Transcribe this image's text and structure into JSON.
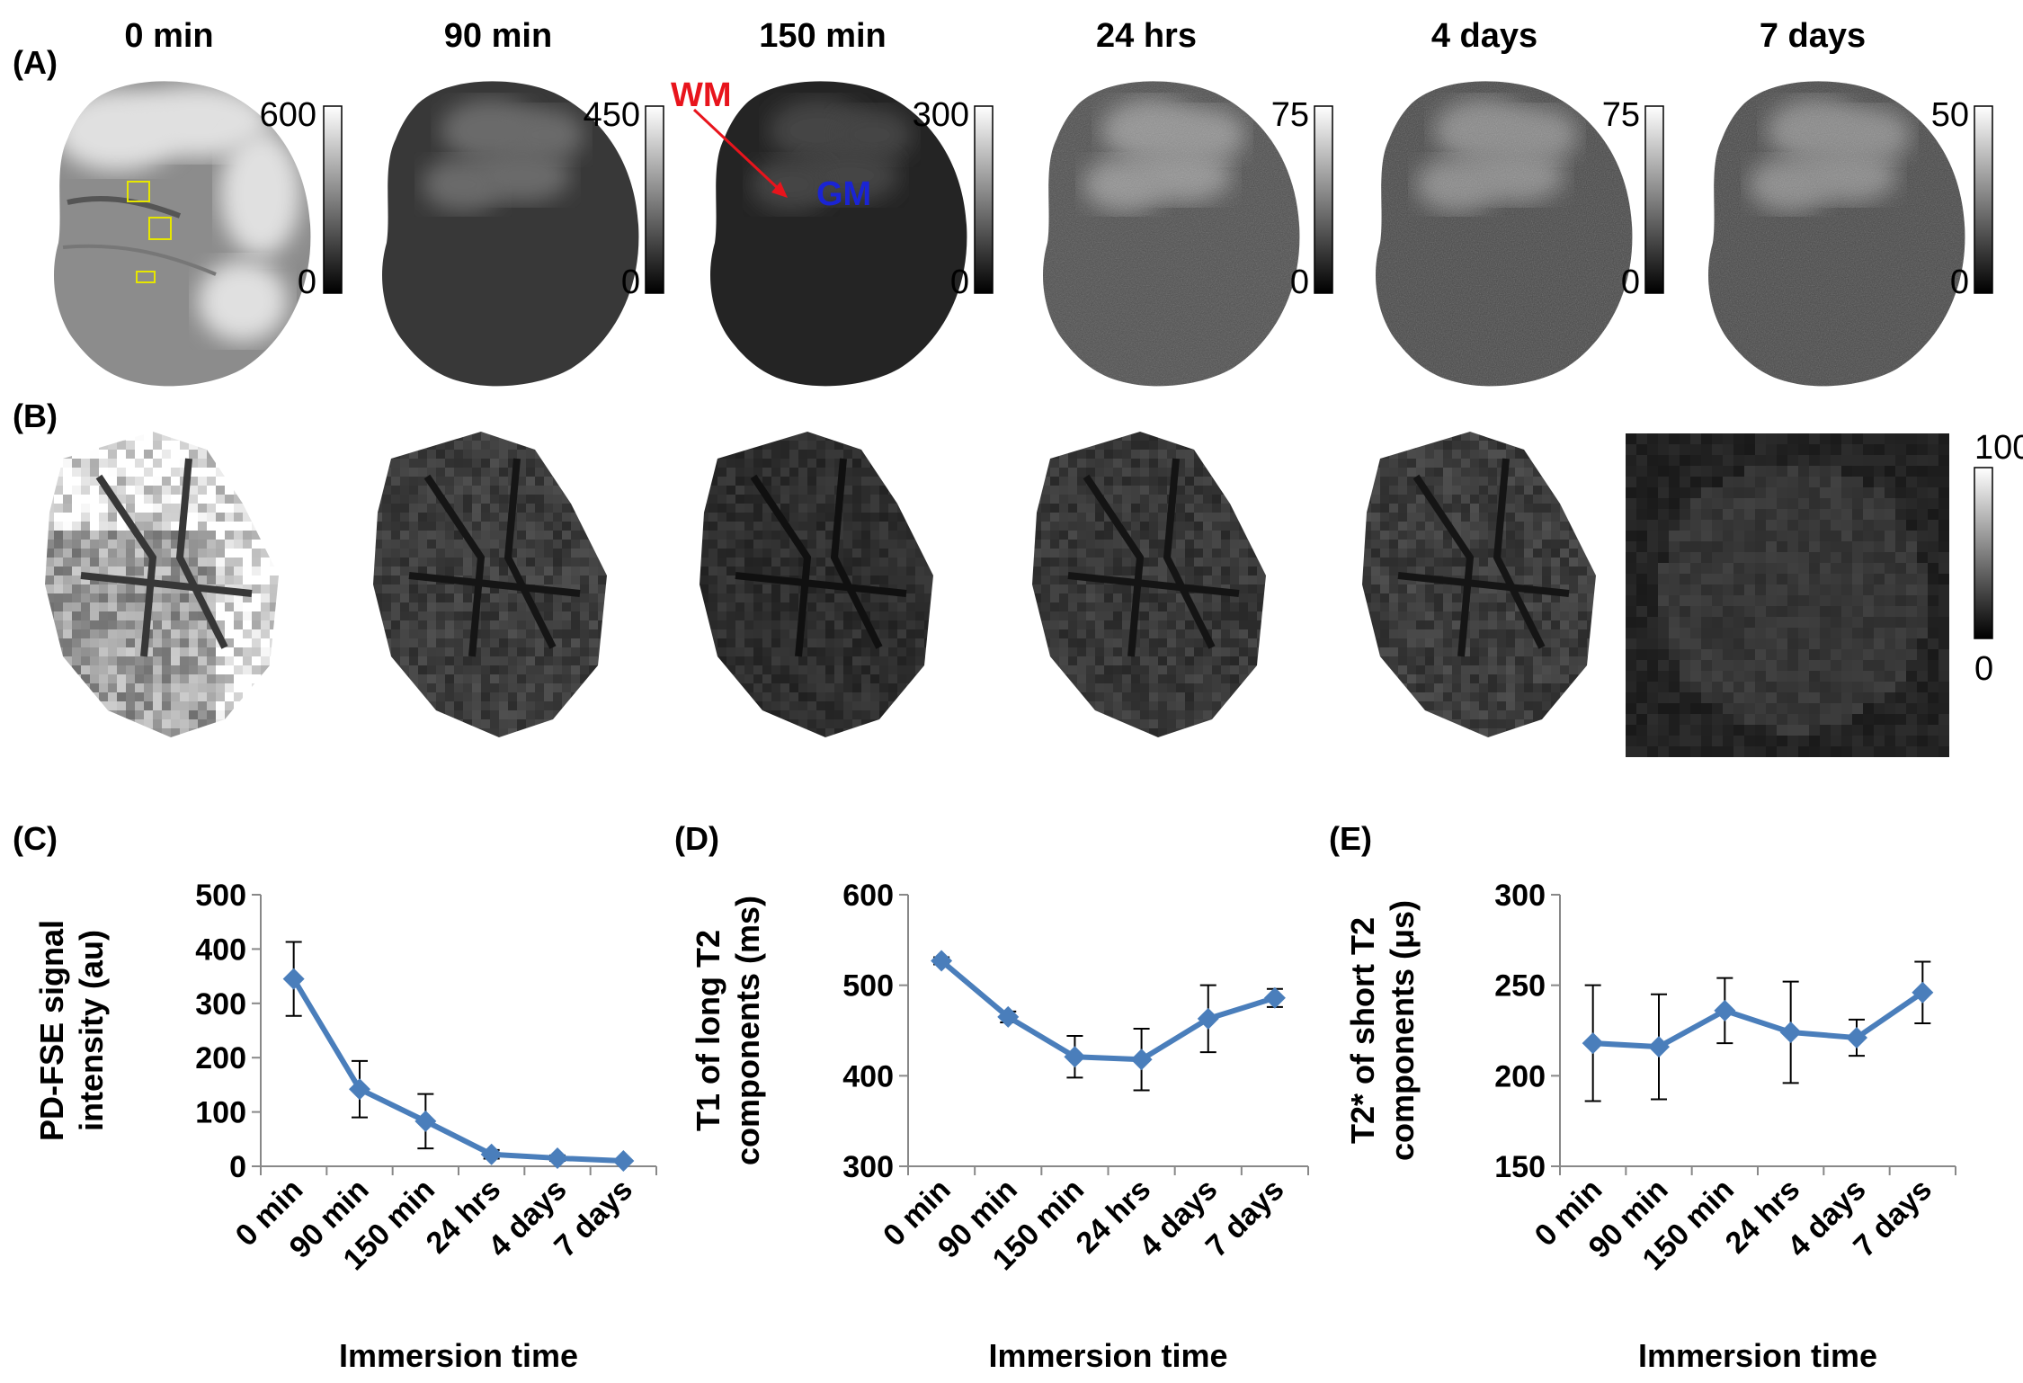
{
  "figure": {
    "panel_labels": [
      "(A)",
      "(B)",
      "(C)",
      "(D)",
      "(E)"
    ],
    "time_headers": [
      "0 min",
      "90 min",
      "150 min",
      "24 hrs",
      "4 days",
      "7 days"
    ],
    "row_a": {
      "colorbar_max": [
        "600",
        "450",
        "300",
        "75",
        "75",
        "50"
      ],
      "colorbar_min": [
        "0",
        "0",
        "0",
        "0",
        "0",
        "0"
      ],
      "annotations": {
        "wm": "WM",
        "gm": "GM"
      },
      "annotation_colors": {
        "wm": "#e8141c",
        "gm": "#1a24d4"
      },
      "image_brightness": [
        0.55,
        0.22,
        0.14,
        0.3,
        0.28,
        0.28
      ]
    },
    "row_b": {
      "colorbar_max": "100",
      "colorbar_min": "0",
      "image_brightness": [
        0.62,
        0.24,
        0.18,
        0.22,
        0.24,
        0.16
      ]
    }
  },
  "chart_data": [
    {
      "type": "line",
      "panel": "(C)",
      "categories": [
        "0 min",
        "90 min",
        "150 min",
        "24 hrs",
        "4 days",
        "7 days"
      ],
      "values": [
        345,
        142,
        83,
        22,
        15,
        10
      ],
      "errors": [
        68,
        52,
        50,
        8,
        5,
        3
      ],
      "ylabel": [
        "PD-FSE signal",
        "intensity (au)"
      ],
      "xlabel": "Immersion time",
      "ylim": [
        0,
        500
      ],
      "yticks": [
        0,
        100,
        200,
        300,
        400,
        500
      ],
      "color": "#4a7ebb"
    },
    {
      "type": "line",
      "panel": "(D)",
      "categories": [
        "0 min",
        "90 min",
        "150 min",
        "24 hrs",
        "4 days",
        "7 days"
      ],
      "values": [
        527,
        465,
        421,
        418,
        463,
        486
      ],
      "errors": [
        4,
        6,
        23,
        34,
        37,
        10
      ],
      "ylabel": [
        "T1 of long T2",
        "components (ms)"
      ],
      "xlabel": "Immersion time",
      "ylim": [
        300,
        600
      ],
      "yticks": [
        300,
        400,
        500,
        600
      ],
      "color": "#4a7ebb"
    },
    {
      "type": "line",
      "panel": "(E)",
      "categories": [
        "0 min",
        "90 min",
        "150 min",
        "24 hrs",
        "4 days",
        "7 days"
      ],
      "values": [
        218,
        216,
        236,
        224,
        221,
        246
      ],
      "errors": [
        32,
        29,
        18,
        28,
        10,
        17
      ],
      "ylabel": [
        "T2* of short T2",
        "components (μs)"
      ],
      "xlabel": "Immersion time",
      "ylim": [
        150,
        300
      ],
      "yticks": [
        150,
        200,
        250,
        300
      ],
      "color": "#4a7ebb"
    }
  ]
}
